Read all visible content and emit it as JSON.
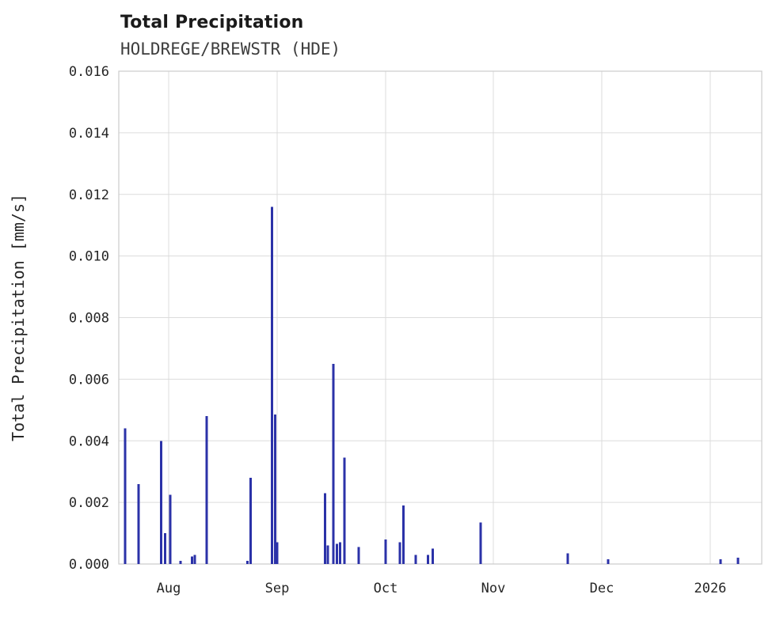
{
  "header": {
    "title": "Total Precipitation",
    "subtitle": "HOLDREGE/BREWSTR (HDE)"
  },
  "chart_data": {
    "type": "bar",
    "title": "Total Precipitation",
    "subtitle": "HOLDREGE/BREWSTR (HDE)",
    "station": "HOLDREGE/BREWSTR (HDE)",
    "xlabel": "",
    "ylabel": "Total Precipitation [mm/s]",
    "ylim": [
      0,
      0.016
    ],
    "yticks": [
      0.0,
      0.002,
      0.004,
      0.006,
      0.008,
      0.01,
      0.012,
      0.014,
      0.016
    ],
    "grid": true,
    "legend_position": "none",
    "bar_color": "#2b32a8",
    "xticks": [
      {
        "label": "Aug",
        "x": 0.0776
      },
      {
        "label": "Sep",
        "x": 0.2463
      },
      {
        "label": "Oct",
        "x": 0.415
      },
      {
        "label": "Nov",
        "x": 0.5825
      },
      {
        "label": "Dec",
        "x": 0.7512
      },
      {
        "label": "2026",
        "x": 0.9199
      }
    ],
    "points": [
      {
        "date": "Jul 20",
        "x": 0.01,
        "value": 0.0044
      },
      {
        "date": "Jul 24",
        "x": 0.031,
        "value": 0.0026
      },
      {
        "date": "Jul 30",
        "x": 0.066,
        "value": 0.004
      },
      {
        "date": "Jul 31",
        "x": 0.072,
        "value": 0.001
      },
      {
        "date": "Aug 1",
        "x": 0.08,
        "value": 0.00225
      },
      {
        "date": "Aug 4",
        "x": 0.096,
        "value": 0.0001
      },
      {
        "date": "Aug 7",
        "x": 0.114,
        "value": 0.00025
      },
      {
        "date": "Aug 8",
        "x": 0.118,
        "value": 0.0003
      },
      {
        "date": "Aug 11",
        "x": 0.137,
        "value": 0.0048
      },
      {
        "date": "Aug 23",
        "x": 0.2,
        "value": 0.0001
      },
      {
        "date": "Aug 24",
        "x": 0.205,
        "value": 0.0028
      },
      {
        "date": "Aug 30",
        "x": 0.238,
        "value": 0.0116
      },
      {
        "date": "Aug 31",
        "x": 0.243,
        "value": 0.00485
      },
      {
        "date": "Sep 1",
        "x": 0.246,
        "value": 0.0007
      },
      {
        "date": "Sep 14",
        "x": 0.321,
        "value": 0.0023
      },
      {
        "date": "Sep 15",
        "x": 0.325,
        "value": 0.0006
      },
      {
        "date": "Sep 16",
        "x": 0.334,
        "value": 0.0065
      },
      {
        "date": "Sep 17",
        "x": 0.339,
        "value": 0.00065
      },
      {
        "date": "Sep 18",
        "x": 0.344,
        "value": 0.0007
      },
      {
        "date": "Sep 19",
        "x": 0.351,
        "value": 0.00345
      },
      {
        "date": "Sep 23",
        "x": 0.373,
        "value": 0.00055
      },
      {
        "date": "Oct 1",
        "x": 0.415,
        "value": 0.0008
      },
      {
        "date": "Oct 5",
        "x": 0.437,
        "value": 0.0007
      },
      {
        "date": "Oct 6",
        "x": 0.443,
        "value": 0.0019
      },
      {
        "date": "Oct 9",
        "x": 0.462,
        "value": 0.0003
      },
      {
        "date": "Oct 13",
        "x": 0.481,
        "value": 0.0003
      },
      {
        "date": "Oct 14",
        "x": 0.488,
        "value": 0.0005
      },
      {
        "date": "Oct 28",
        "x": 0.563,
        "value": 0.00135
      },
      {
        "date": "Nov 22",
        "x": 0.698,
        "value": 0.00035
      },
      {
        "date": "Dec 3",
        "x": 0.761,
        "value": 0.00015
      },
      {
        "date": "Jan 4",
        "x": 0.936,
        "value": 0.00015
      },
      {
        "date": "Jan 9",
        "x": 0.963,
        "value": 0.0002
      }
    ]
  }
}
